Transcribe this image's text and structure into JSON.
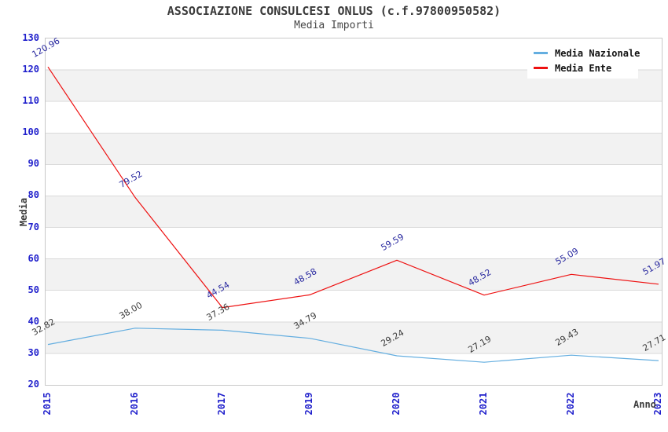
{
  "chart_data": {
    "type": "line",
    "title": "ASSOCIAZIONE CONSULCESI ONLUS (c.f.97800950582)",
    "subtitle": "Media Importi",
    "xlabel": "Anno",
    "ylabel": "Media",
    "ylim": [
      20,
      130
    ],
    "ytick_step": 10,
    "grid": "horizontal gridlines every 10 units with alternating white/gray bands",
    "legend_position": "top-right",
    "categories": [
      "2015",
      "2016",
      "2017",
      "2019",
      "2020",
      "2021",
      "2022",
      "2023"
    ],
    "series": [
      {
        "name": "Media Nazionale",
        "color": "#64AEE0",
        "label_color": "#3C3C3C",
        "values": [
          32.82,
          38.0,
          37.36,
          34.79,
          29.24,
          27.19,
          29.43,
          27.71
        ]
      },
      {
        "name": "Media Ente",
        "color": "#EE1111",
        "label_color": "#2A2AA0",
        "values": [
          120.96,
          79.52,
          44.54,
          48.58,
          59.59,
          48.52,
          55.09,
          51.97
        ]
      }
    ],
    "colors": {
      "tick_label": "#2121CC",
      "axis_title": "#3B3B3B",
      "band_gray": "#F2F2F2",
      "band_white": "#FFFFFF",
      "gridline": "#DADADA",
      "plot_border": "#C9C9C9",
      "legend_bg": "#FFFFFF"
    }
  }
}
